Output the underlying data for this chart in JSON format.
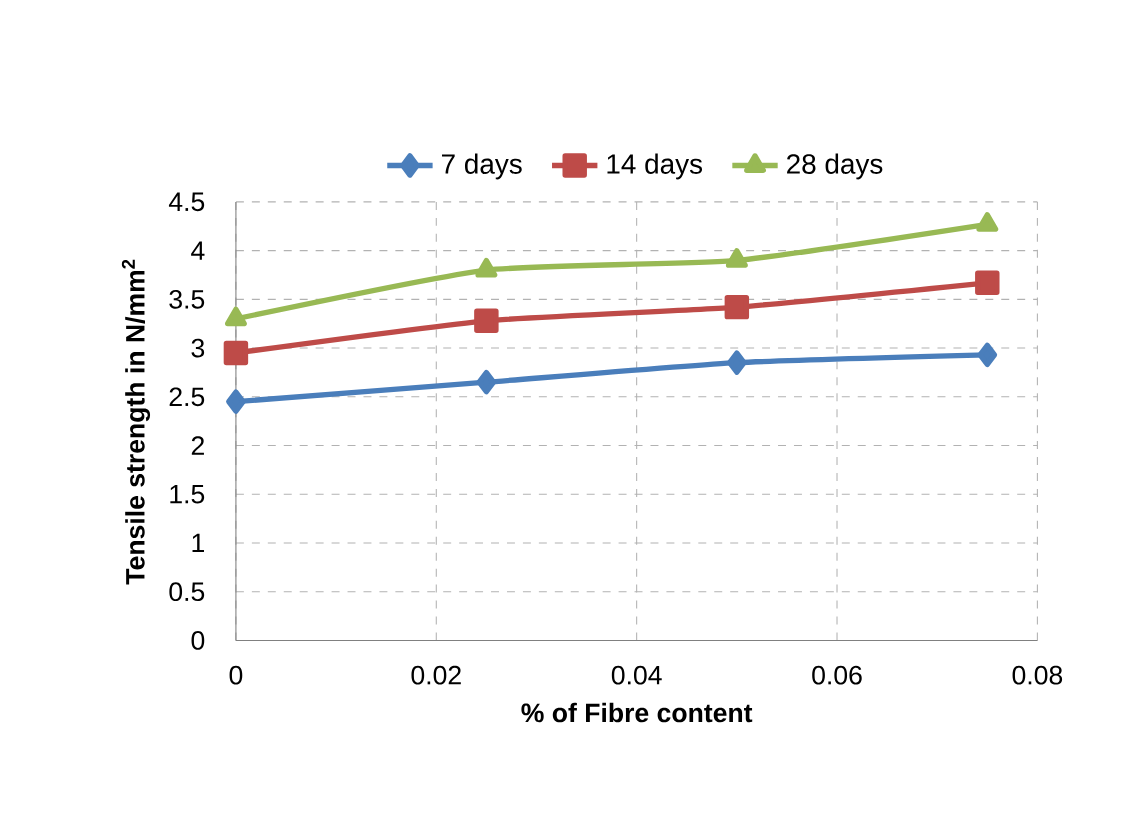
{
  "chart_data": {
    "type": "line",
    "xlabel": "% of Fibre content",
    "ylabel": "Tensile strength in N/mm$^{2}$",
    "x": [
      0,
      0.025,
      0.05,
      0.075
    ],
    "series": [
      {
        "name": "7 days",
        "color": "#4a7ebb",
        "marker": "diamond",
        "values": [
          2.45,
          2.65,
          2.85,
          2.93
        ]
      },
      {
        "name": "14 days",
        "color": "#be4b48",
        "marker": "square",
        "values": [
          2.95,
          3.28,
          3.42,
          3.67
        ]
      },
      {
        "name": "28 days",
        "color": "#98b954",
        "marker": "triangle",
        "values": [
          3.3,
          3.8,
          3.9,
          4.27
        ]
      }
    ],
    "xlim": [
      0,
      0.08
    ],
    "xticks": [
      0,
      0.02,
      0.04,
      0.06,
      0.08
    ],
    "ylim": [
      0,
      4.5
    ],
    "yticks": [
      0,
      0.5,
      1,
      1.5,
      2,
      2.5,
      3,
      3.5,
      4,
      4.5
    ],
    "grid": true,
    "legend": "top",
    "line_style": "solid"
  }
}
